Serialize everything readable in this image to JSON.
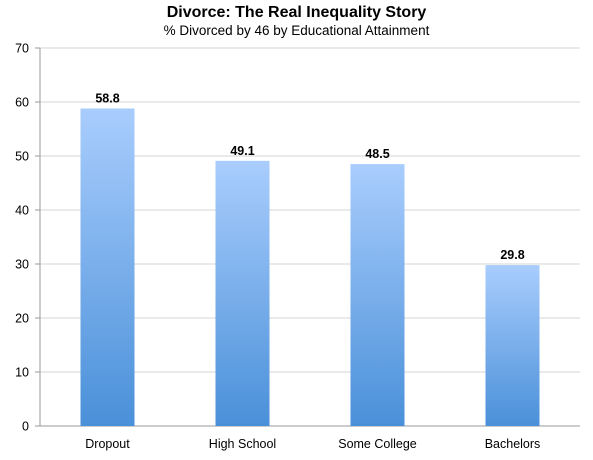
{
  "chart_data": {
    "type": "bar",
    "title": "Divorce: The Real Inequality Story",
    "subtitle": "% Divorced by 46 by Educational Attainment",
    "xlabel": "",
    "ylabel": "",
    "categories": [
      "Dropout",
      "High School",
      "Some College",
      "Bachelors"
    ],
    "values": [
      58.8,
      49.1,
      48.5,
      29.8
    ],
    "data_labels": [
      "58.8",
      "49.1",
      "48.5",
      "29.8"
    ],
    "ylim": [
      0,
      70
    ],
    "yticks": [
      0,
      10,
      20,
      30,
      40,
      50,
      60,
      70
    ],
    "grid": true,
    "legend": "none",
    "colors": {
      "bar_top": "#a9cdfd",
      "bar_bottom": "#4a90d9",
      "grid": "#d4d4d4",
      "axis": "#9a9a9a"
    }
  }
}
